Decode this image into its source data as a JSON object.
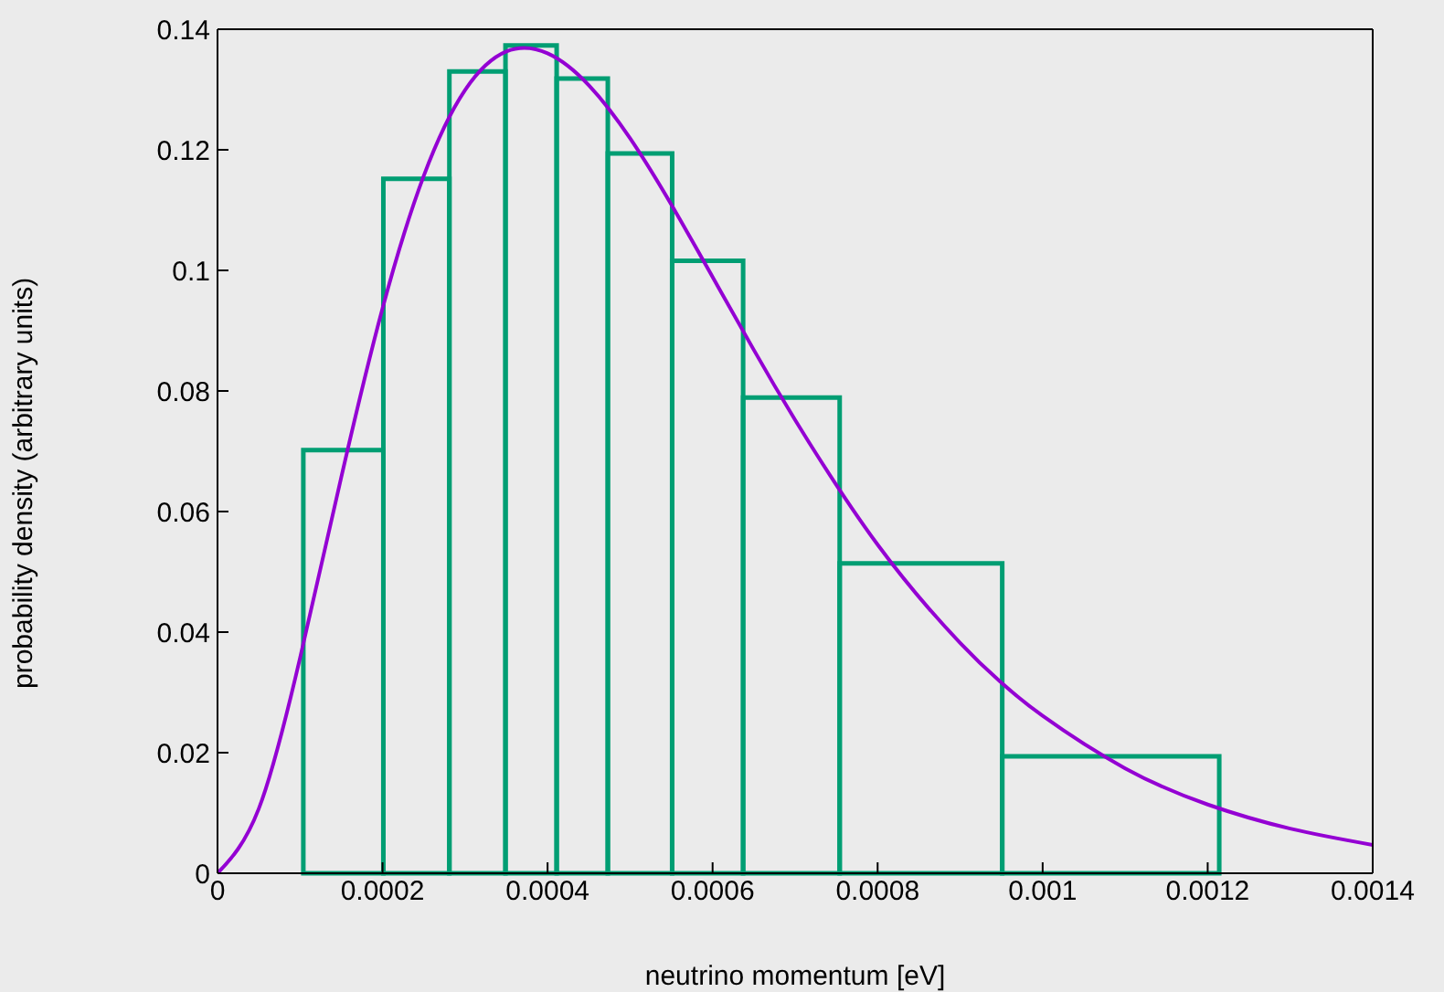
{
  "chart_data": {
    "type": "histogram",
    "xlabel": "neutrino momentum [eV]",
    "ylabel": "probability density (arbitrary units)",
    "bins": [
      0.000104,
      0.000201,
      0.000281,
      0.000349,
      0.000411,
      0.000473,
      0.000551,
      0.000637,
      0.000754,
      0.000951,
      0.001214
    ],
    "values": [
      0.0702,
      0.1152,
      0.133,
      0.1373,
      0.1318,
      0.1194,
      0.1016,
      0.0789,
      0.0514,
      0.0194
    ],
    "color": "#009e73",
    "series": [
      {
        "type": "line",
        "color": "#9400d3",
        "x": [
          0,
          5e-05,
          0.0001,
          0.00015,
          0.0002,
          0.00025,
          0.0003,
          0.00035,
          0.0004,
          0.00045,
          0.0005,
          0.00055,
          0.0006,
          0.00065,
          0.0007,
          0.0008,
          0.0009,
          0.00095,
          0.001,
          0.0011,
          0.0012,
          0.0013,
          0.0014
        ],
        "values": [
          0,
          0.0107,
          0.0357,
          0.0657,
          0.0937,
          0.1157,
          0.1299,
          0.1363,
          0.136,
          0.1307,
          0.1219,
          0.1109,
          0.0989,
          0.0868,
          0.0752,
          0.0545,
          0.0382,
          0.0316,
          0.0261,
          0.0174,
          0.0114,
          0.0074,
          0.0047
        ]
      }
    ],
    "xlim": [
      0,
      0.0014
    ],
    "xticks": [
      0,
      0.0002,
      0.0004,
      0.0006,
      0.0008,
      0.001,
      0.0012,
      0.0014
    ],
    "ylim": [
      0,
      0.14
    ],
    "yticks": [
      0,
      0.02,
      0.04,
      0.06,
      0.08,
      0.1,
      0.12,
      0.14
    ],
    "grid": false
  }
}
